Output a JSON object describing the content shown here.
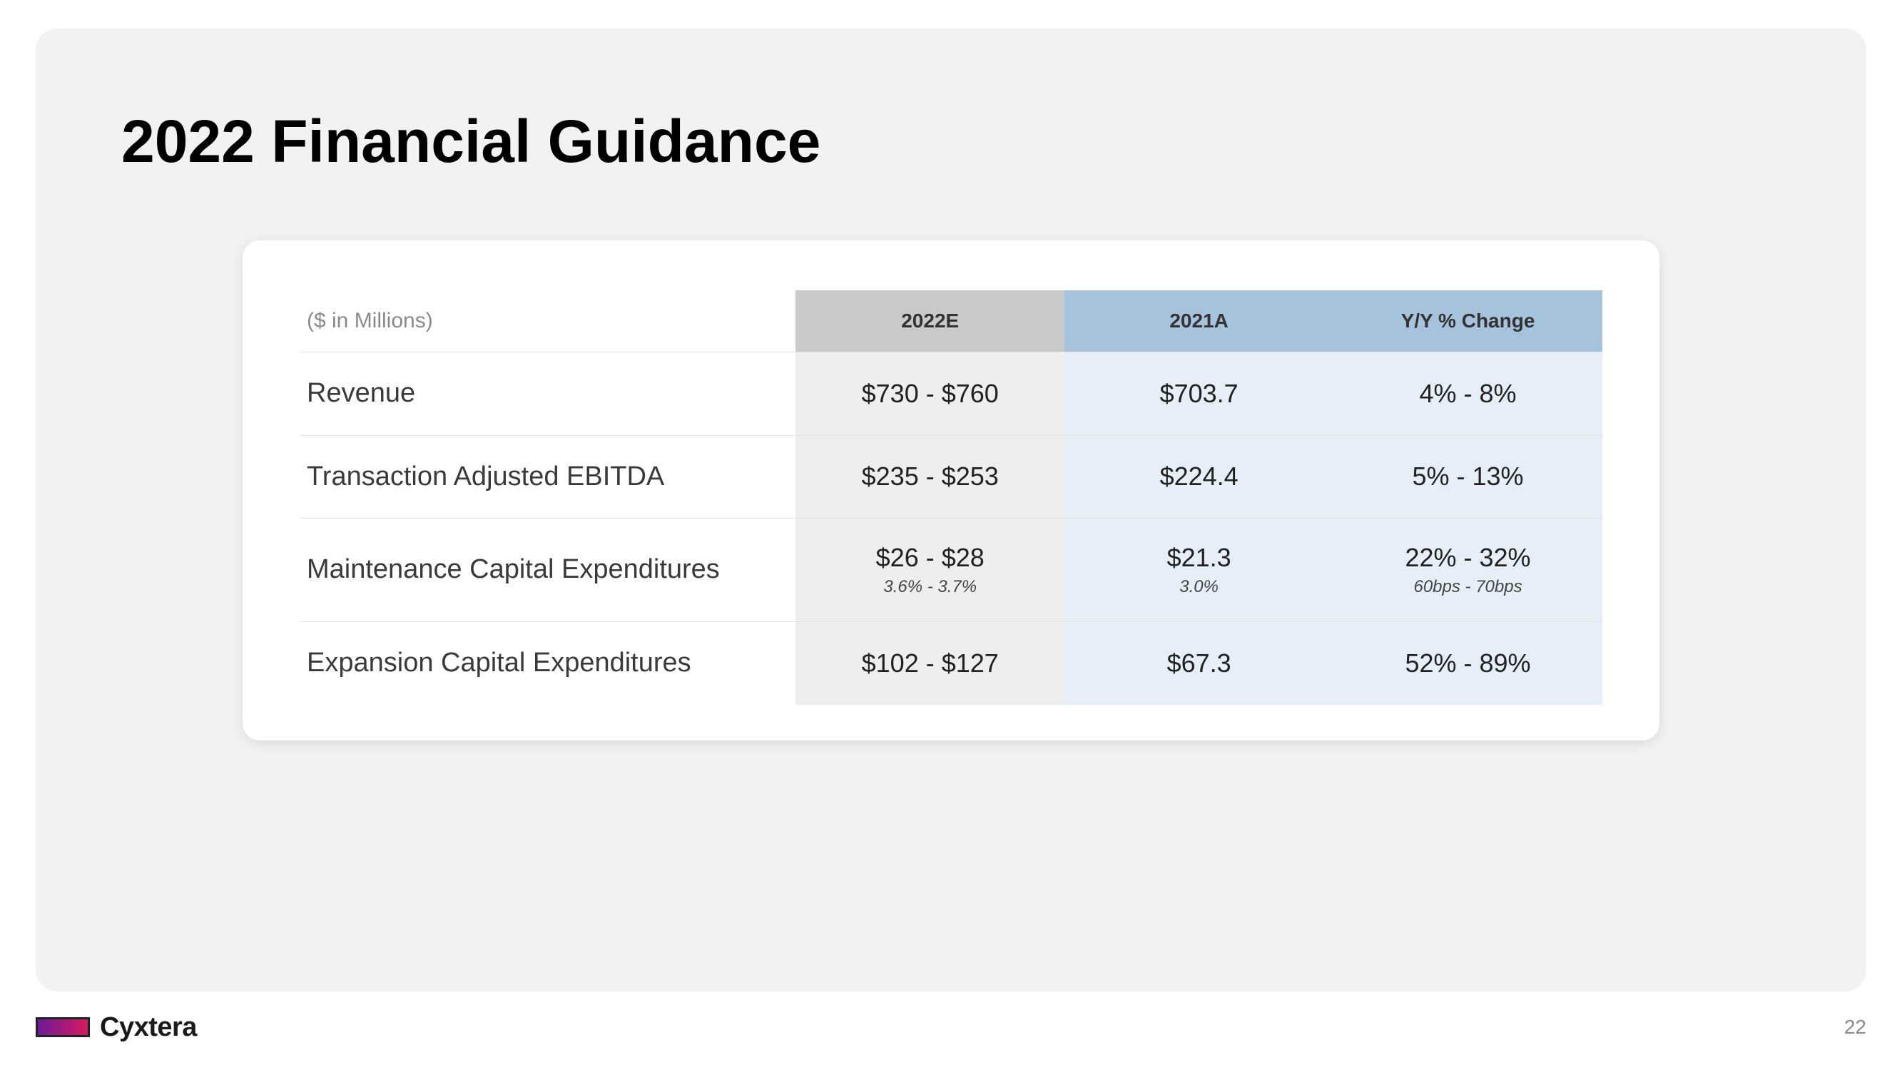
{
  "title": "2022 Financial Guidance",
  "table": {
    "units_label": "($ in Millions)",
    "columns": [
      "2022E",
      "2021A",
      "Y/Y % Change"
    ],
    "header_bg_colors": [
      "#c9c9c9",
      "#a6c2dd",
      "#a6c2dd"
    ],
    "body_bg_colors": [
      "#eeeeee",
      "#e6eff7",
      "#e6eff7"
    ],
    "rows": [
      {
        "label": "Revenue",
        "cells": [
          {
            "main": "$730 - $760"
          },
          {
            "main": "$703.7"
          },
          {
            "main": "4% - 8%"
          }
        ]
      },
      {
        "label": "Transaction Adjusted EBITDA",
        "cells": [
          {
            "main": "$235 - $253"
          },
          {
            "main": "$224.4"
          },
          {
            "main": "5% - 13%"
          }
        ]
      },
      {
        "label": "Maintenance Capital Expenditures",
        "cells": [
          {
            "main": "$26 - $28",
            "sub": "3.6% - 3.7%"
          },
          {
            "main": "$21.3",
            "sub": "3.0%"
          },
          {
            "main": "22% - 32%",
            "sub": "60bps - 70bps"
          }
        ]
      },
      {
        "label": "Expansion Capital Expenditures",
        "cells": [
          {
            "main": "$102 - $127"
          },
          {
            "main": "$67.3"
          },
          {
            "main": "52% - 89%"
          }
        ]
      }
    ]
  },
  "footer": {
    "brand": "Cyxtera",
    "logo_gradient": [
      "#6a1b9a",
      "#d81b60"
    ],
    "page_number": "22"
  },
  "colors": {
    "page_bg": "#ffffff",
    "panel_bg": "#f2f2f2",
    "card_bg": "#ffffff",
    "title_color": "#000000",
    "row_border": "#e3e3e3",
    "muted_text": "#8a8a8a"
  }
}
